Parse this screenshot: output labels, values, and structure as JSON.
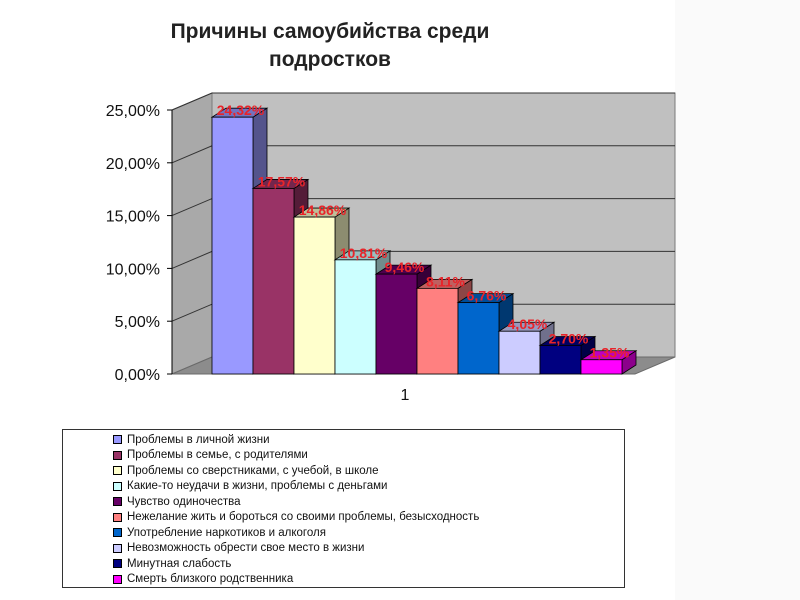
{
  "chart_data": {
    "type": "bar",
    "title_lines": [
      "Причины самоубийства среди",
      "подростков"
    ],
    "categories": [
      "1"
    ],
    "ylim": [
      0,
      25
    ],
    "yticks": [
      "0,00%",
      "5,00%",
      "10,00%",
      "15,00%",
      "20,00%",
      "25,00%"
    ],
    "grid": true,
    "legend_position": "bottom",
    "series": [
      {
        "name": "Проблемы в личной жизни",
        "value": 24.32,
        "label": "24,32%",
        "color": "#9999ff"
      },
      {
        "name": "Проблемы в семье, с родителями",
        "value": 17.57,
        "label": "17,57%",
        "color": "#993366"
      },
      {
        "name": "Проблемы со сверстниками, с учебой, в школе",
        "value": 14.86,
        "label": "14,86%",
        "color": "#ffffcc"
      },
      {
        "name": "Какие-то неудачи в жизни, проблемы с деньгами",
        "value": 10.81,
        "label": "10,81%",
        "color": "#ccffff"
      },
      {
        "name": "Чувство одиночества",
        "value": 9.46,
        "label": "9,46%",
        "color": "#660066"
      },
      {
        "name": "Нежелание жить и бороться со своими проблемы, безысходность",
        "value": 8.11,
        "label": "8,11%",
        "color": "#ff8080"
      },
      {
        "name": "Употребление наркотиков и алкоголя",
        "value": 6.76,
        "label": "6,76%",
        "color": "#0066cc"
      },
      {
        "name": "Невозможность обрести свое место в жизни",
        "value": 4.05,
        "label": "4,05%",
        "color": "#ccccff"
      },
      {
        "name": "Минутная слабость",
        "value": 2.7,
        "label": "2,70%",
        "color": "#000080"
      },
      {
        "name": "Смерть близкого родственника",
        "value": 1.35,
        "label": "1,35%",
        "color": "#ff00ff"
      }
    ]
  }
}
